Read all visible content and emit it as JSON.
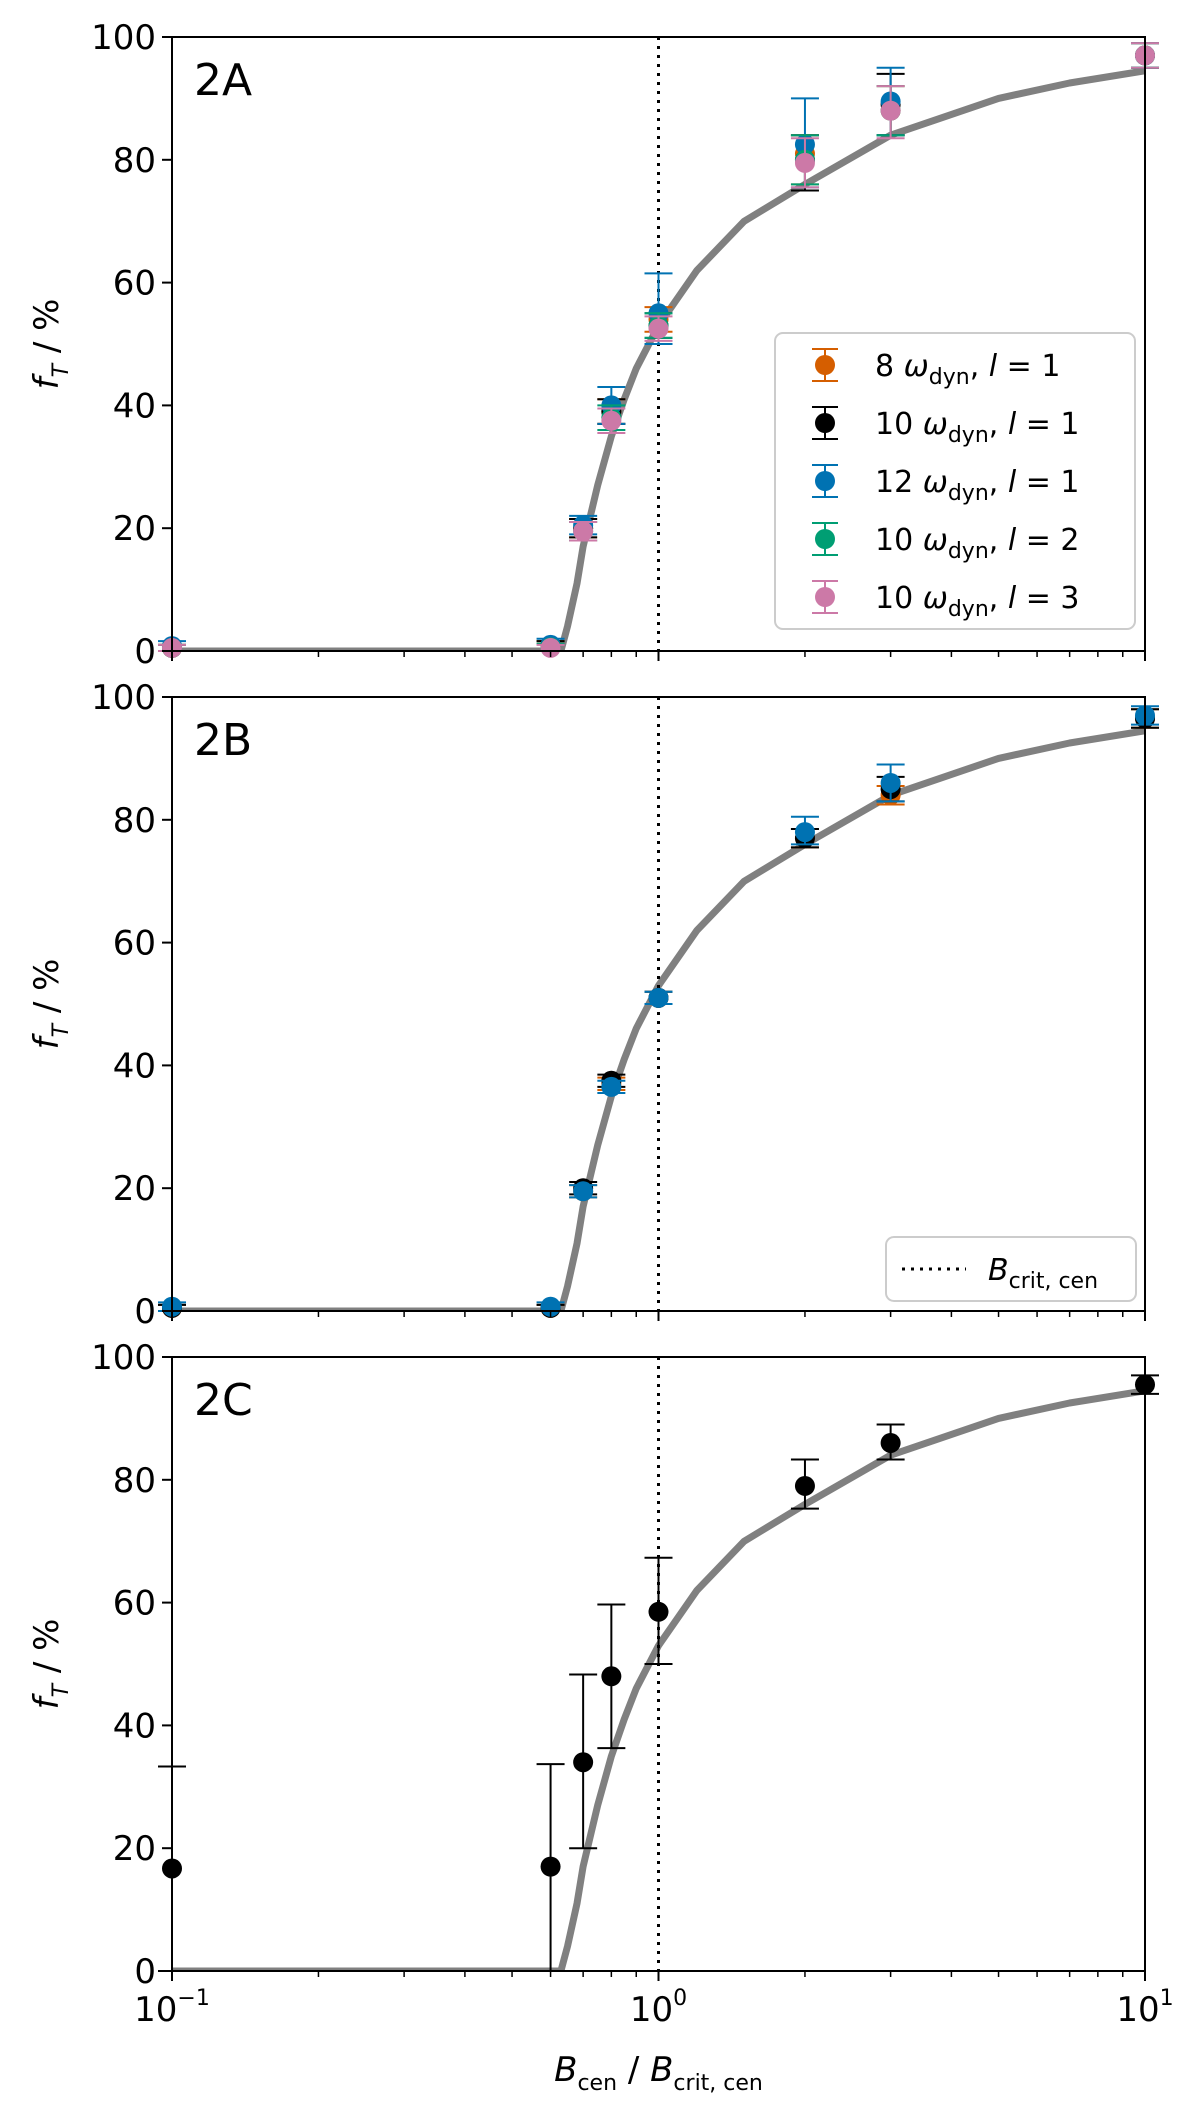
{
  "figure": {
    "xlabel": {
      "main": "B",
      "sub": "cen",
      "sep": " / ",
      "main2": "B",
      "sub2": "crit, cen"
    },
    "ylabel": {
      "main": "f",
      "sub": "T",
      "rest": " / %"
    }
  },
  "chart_data": [
    {
      "type": "scatter",
      "panel": "2A",
      "xscale": "log",
      "xlim": [
        0.1,
        10
      ],
      "ylim": [
        0,
        100
      ],
      "xticks": [
        "10^-1",
        "10^0",
        "10^1"
      ],
      "yticks": [
        0,
        20,
        40,
        60,
        80,
        100
      ],
      "vline_x": 1,
      "legend_location": "center-right",
      "series": [
        {
          "name": "8 ω_dyn, l = 1",
          "color": "#d55e00",
          "points": [
            {
              "x": 0.1,
              "y": 0.5,
              "lo": 0,
              "hi": 1
            },
            {
              "x": 0.6,
              "y": 0.8,
              "lo": 0,
              "hi": 1.6
            },
            {
              "x": 0.7,
              "y": 20,
              "lo": 18.5,
              "hi": 21.5
            },
            {
              "x": 0.8,
              "y": 39,
              "lo": 37,
              "hi": 41
            },
            {
              "x": 1,
              "y": 54,
              "lo": 52,
              "hi": 56
            },
            {
              "x": 2,
              "y": 81,
              "lo": 76,
              "hi": 84
            },
            {
              "x": 3,
              "y": 88,
              "lo": 84,
              "hi": 92
            },
            {
              "x": 10,
              "y": 97,
              "lo": 95,
              "hi": 99
            }
          ]
        },
        {
          "name": "10 ω_dyn, l = 1",
          "color": "#000000",
          "points": [
            {
              "x": 0.1,
              "y": 0.5,
              "lo": 0,
              "hi": 1
            },
            {
              "x": 0.6,
              "y": 0.8,
              "lo": 0,
              "hi": 1.6
            },
            {
              "x": 0.7,
              "y": 20,
              "lo": 18.5,
              "hi": 21.5
            },
            {
              "x": 0.8,
              "y": 39,
              "lo": 37,
              "hi": 41
            },
            {
              "x": 1,
              "y": 53,
              "lo": 51,
              "hi": 55
            },
            {
              "x": 2,
              "y": 80,
              "lo": 75,
              "hi": 84
            },
            {
              "x": 3,
              "y": 89,
              "lo": 84,
              "hi": 94
            },
            {
              "x": 10,
              "y": 97,
              "lo": 95,
              "hi": 99
            }
          ]
        },
        {
          "name": "12 ω_dyn, l = 1",
          "color": "#0072b2",
          "points": [
            {
              "x": 0.1,
              "y": 0.8,
              "lo": 0,
              "hi": 1.6
            },
            {
              "x": 0.6,
              "y": 1,
              "lo": 0,
              "hi": 2
            },
            {
              "x": 0.7,
              "y": 20.5,
              "lo": 19,
              "hi": 22
            },
            {
              "x": 0.8,
              "y": 40,
              "lo": 37,
              "hi": 43
            },
            {
              "x": 1,
              "y": 55,
              "lo": 50,
              "hi": 61.5
            },
            {
              "x": 2,
              "y": 82.5,
              "lo": 75.5,
              "hi": 90
            },
            {
              "x": 3,
              "y": 89.5,
              "lo": 84,
              "hi": 95
            },
            {
              "x": 10,
              "y": 97,
              "lo": 95,
              "hi": 99
            }
          ]
        },
        {
          "name": "10 ω_dyn, l = 2",
          "color": "#009e73",
          "points": [
            {
              "x": 0.1,
              "y": 0.5,
              "lo": 0,
              "hi": 1
            },
            {
              "x": 0.6,
              "y": 0.6,
              "lo": 0,
              "hi": 1.2
            },
            {
              "x": 0.7,
              "y": 19.5,
              "lo": 18,
              "hi": 21
            },
            {
              "x": 0.8,
              "y": 38,
              "lo": 36,
              "hi": 40
            },
            {
              "x": 1,
              "y": 53,
              "lo": 51,
              "hi": 55
            },
            {
              "x": 2,
              "y": 80,
              "lo": 76,
              "hi": 84
            },
            {
              "x": 3,
              "y": 88,
              "lo": 84,
              "hi": 92
            },
            {
              "x": 10,
              "y": 97,
              "lo": 95,
              "hi": 99
            }
          ]
        },
        {
          "name": "10 ω_dyn, l = 3",
          "color": "#cc79a7",
          "points": [
            {
              "x": 0.1,
              "y": 0.5,
              "lo": 0,
              "hi": 1
            },
            {
              "x": 0.6,
              "y": 0.5,
              "lo": 0,
              "hi": 1
            },
            {
              "x": 0.7,
              "y": 19.5,
              "lo": 18,
              "hi": 21
            },
            {
              "x": 0.8,
              "y": 37.5,
              "lo": 35.5,
              "hi": 39.5
            },
            {
              "x": 1,
              "y": 52.5,
              "lo": 50.5,
              "hi": 54.5
            },
            {
              "x": 2,
              "y": 79.5,
              "lo": 75.5,
              "hi": 83.5
            },
            {
              "x": 3,
              "y": 88,
              "lo": 83.5,
              "hi": 92
            },
            {
              "x": 10,
              "y": 97,
              "lo": 95,
              "hi": 99
            }
          ]
        }
      ]
    },
    {
      "type": "scatter",
      "panel": "2B",
      "xscale": "log",
      "xlim": [
        0.1,
        10
      ],
      "ylim": [
        0,
        100
      ],
      "xticks": [
        "10^-1",
        "10^0",
        "10^1"
      ],
      "yticks": [
        0,
        20,
        40,
        60,
        80,
        100
      ],
      "vline_x": 1,
      "legend_location": "lower-right",
      "legend_entry": {
        "line": "dotted",
        "main": "B",
        "sub": "crit, cen"
      },
      "series": [
        {
          "name": "8 ω_dyn, l = 1",
          "color": "#d55e00",
          "points": [
            {
              "x": 0.1,
              "y": 0.5,
              "lo": 0,
              "hi": 1
            },
            {
              "x": 0.6,
              "y": 0.5,
              "lo": 0,
              "hi": 1
            },
            {
              "x": 0.7,
              "y": 19.5,
              "lo": 18.5,
              "hi": 20.5
            },
            {
              "x": 0.8,
              "y": 37,
              "lo": 36,
              "hi": 38
            },
            {
              "x": 1,
              "y": 51,
              "lo": 50,
              "hi": 52
            },
            {
              "x": 2,
              "y": 77,
              "lo": 75.5,
              "hi": 78.5
            },
            {
              "x": 3,
              "y": 84,
              "lo": 82.5,
              "hi": 85.5
            },
            {
              "x": 10,
              "y": 96.5,
              "lo": 95,
              "hi": 98
            }
          ]
        },
        {
          "name": "10 ω_dyn, l = 1",
          "color": "#000000",
          "points": [
            {
              "x": 0.1,
              "y": 0.5,
              "lo": 0,
              "hi": 1
            },
            {
              "x": 0.6,
              "y": 0.5,
              "lo": 0,
              "hi": 1
            },
            {
              "x": 0.7,
              "y": 20,
              "lo": 19,
              "hi": 21
            },
            {
              "x": 0.8,
              "y": 37.5,
              "lo": 36.5,
              "hi": 38.5
            },
            {
              "x": 1,
              "y": 51,
              "lo": 50,
              "hi": 52
            },
            {
              "x": 2,
              "y": 77,
              "lo": 75.5,
              "hi": 78.5
            },
            {
              "x": 3,
              "y": 85,
              "lo": 83,
              "hi": 87
            },
            {
              "x": 10,
              "y": 96.5,
              "lo": 95,
              "hi": 98
            }
          ]
        },
        {
          "name": "12 ω_dyn, l = 1",
          "color": "#0072b2",
          "points": [
            {
              "x": 0.1,
              "y": 0.7,
              "lo": 0,
              "hi": 1.4
            },
            {
              "x": 0.6,
              "y": 0.7,
              "lo": 0,
              "hi": 1.4
            },
            {
              "x": 0.7,
              "y": 19.5,
              "lo": 18.5,
              "hi": 20.5
            },
            {
              "x": 0.8,
              "y": 36.5,
              "lo": 35.5,
              "hi": 37.5
            },
            {
              "x": 1,
              "y": 51,
              "lo": 50,
              "hi": 52
            },
            {
              "x": 2,
              "y": 78,
              "lo": 76,
              "hi": 80.5
            },
            {
              "x": 3,
              "y": 86,
              "lo": 83,
              "hi": 89
            },
            {
              "x": 10,
              "y": 97,
              "lo": 95.5,
              "hi": 98.5
            }
          ]
        }
      ]
    },
    {
      "type": "scatter",
      "panel": "2C",
      "xscale": "log",
      "xlim": [
        0.1,
        10
      ],
      "ylim": [
        0,
        100
      ],
      "xticks": [
        "10^-1",
        "10^0",
        "10^1"
      ],
      "yticks": [
        0,
        20,
        40,
        60,
        80,
        100
      ],
      "vline_x": 1,
      "series": [
        {
          "name": "10 ω_dyn, l = 1",
          "color": "#000000",
          "points": [
            {
              "x": 0.1,
              "y": 16.7,
              "lo": 0,
              "hi": 33.3
            },
            {
              "x": 0.6,
              "y": 17,
              "lo": 0,
              "hi": 33.7
            },
            {
              "x": 0.7,
              "y": 34,
              "lo": 20,
              "hi": 48.3
            },
            {
              "x": 0.8,
              "y": 48,
              "lo": 36.3,
              "hi": 59.7
            },
            {
              "x": 1,
              "y": 58.5,
              "lo": 50,
              "hi": 67.3
            },
            {
              "x": 2,
              "y": 79,
              "lo": 75.3,
              "hi": 83.3
            },
            {
              "x": 3,
              "y": 86,
              "lo": 83.3,
              "hi": 89
            },
            {
              "x": 10,
              "y": 95.5,
              "lo": 94,
              "hi": 97
            }
          ]
        }
      ]
    }
  ],
  "model_curve": {
    "color": "#808080",
    "points": [
      {
        "x": 0.1,
        "y": 0
      },
      {
        "x": 0.5,
        "y": 0
      },
      {
        "x": 0.63,
        "y": 0
      },
      {
        "x": 0.65,
        "y": 4
      },
      {
        "x": 0.68,
        "y": 11
      },
      {
        "x": 0.7,
        "y": 17
      },
      {
        "x": 0.75,
        "y": 27
      },
      {
        "x": 0.8,
        "y": 35
      },
      {
        "x": 0.85,
        "y": 41
      },
      {
        "x": 0.9,
        "y": 46
      },
      {
        "x": 1,
        "y": 53
      },
      {
        "x": 1.2,
        "y": 62
      },
      {
        "x": 1.5,
        "y": 70
      },
      {
        "x": 2,
        "y": 76
      },
      {
        "x": 3,
        "y": 84
      },
      {
        "x": 5,
        "y": 90
      },
      {
        "x": 7,
        "y": 92.5
      },
      {
        "x": 10,
        "y": 94.5
      }
    ]
  },
  "legend_labels": [
    {
      "num": "8",
      "l": "1"
    },
    {
      "num": "10",
      "l": "1"
    },
    {
      "num": "12",
      "l": "1"
    },
    {
      "num": "10",
      "l": "2"
    },
    {
      "num": "10",
      "l": "3"
    }
  ]
}
